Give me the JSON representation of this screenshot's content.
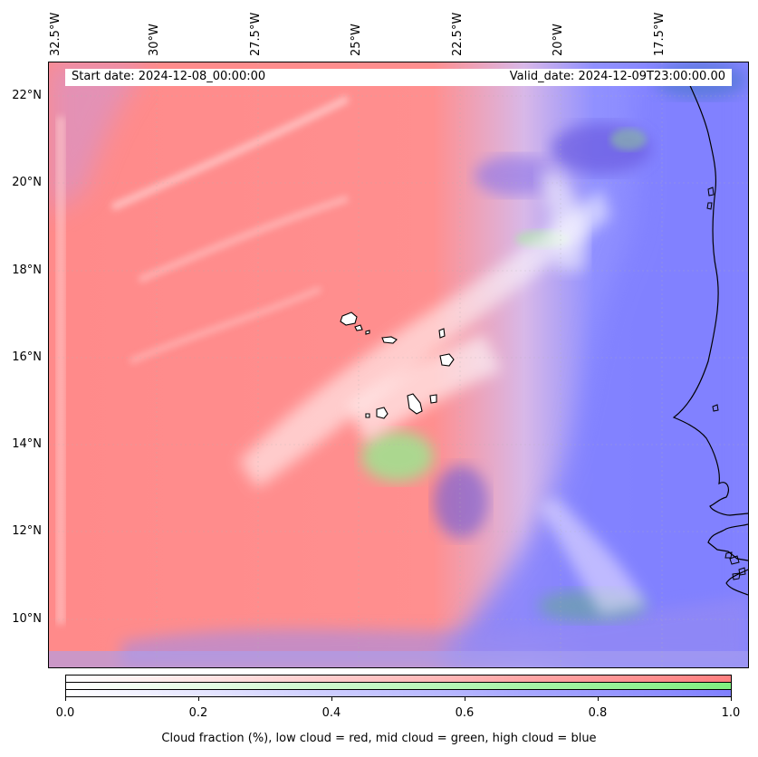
{
  "map": {
    "lon_labels": [
      "32.5°W",
      "30°W",
      "27.5°W",
      "25°W",
      "22.5°W",
      "20°W",
      "17.5°W"
    ],
    "lat_labels": [
      "22°N",
      "20°N",
      "18°N",
      "16°N",
      "14°N",
      "12°N",
      "10°N"
    ],
    "colors": {
      "low_cloud": "#ff8080",
      "mid_cloud": "#80f080",
      "high_cloud": "#8080ff",
      "coastline": "#000000"
    }
  },
  "info": {
    "start_date": "Start date: 2024-12-08_00:00:00",
    "valid_date": "Valid_date: 2024-12-09T23:00:00.00"
  },
  "colorbar": {
    "ticks": [
      "0.0",
      "0.2",
      "0.4",
      "0.6",
      "0.8",
      "1.0"
    ],
    "label": "Cloud fraction (%), low cloud = red, mid cloud = green, high cloud = blue"
  }
}
